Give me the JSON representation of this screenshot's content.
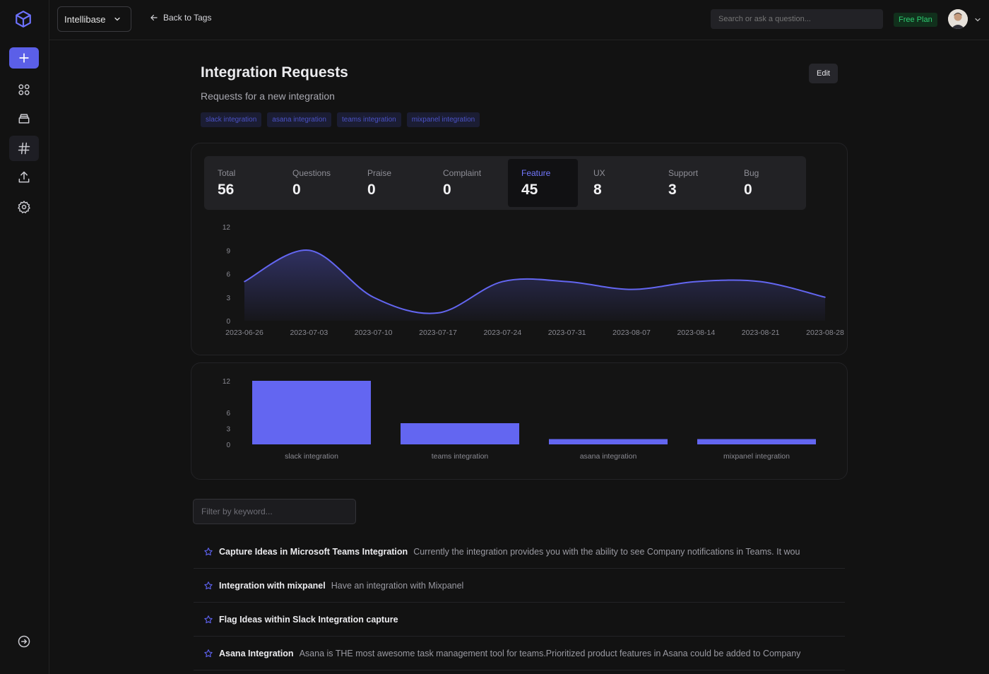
{
  "app": {
    "workspace": "Intellibase",
    "back_label": "Back to Tags",
    "search_placeholder": "Search or ask a question...",
    "plan_badge": "Free Plan"
  },
  "page": {
    "title": "Integration Requests",
    "subtitle": "Requests for a new integration",
    "edit_label": "Edit",
    "tags": [
      "slack integration",
      "asana integration",
      "teams integration",
      "mixpanel integration"
    ]
  },
  "stats": [
    {
      "label": "Total",
      "value": "56"
    },
    {
      "label": "Questions",
      "value": "0"
    },
    {
      "label": "Praise",
      "value": "0"
    },
    {
      "label": "Complaint",
      "value": "0"
    },
    {
      "label": "Feature",
      "value": "45"
    },
    {
      "label": "UX",
      "value": "8"
    },
    {
      "label": "Support",
      "value": "3"
    },
    {
      "label": "Bug",
      "value": "0"
    }
  ],
  "active_stat": "Feature",
  "chart_data": [
    {
      "type": "area",
      "x": [
        "2023-06-26",
        "2023-07-03",
        "2023-07-10",
        "2023-07-17",
        "2023-07-24",
        "2023-07-31",
        "2023-08-07",
        "2023-08-14",
        "2023-08-21",
        "2023-08-28"
      ],
      "values": [
        5,
        9,
        3,
        1,
        5,
        5,
        4,
        5,
        5,
        3
      ],
      "yticks": [
        0,
        3,
        6,
        9,
        12
      ],
      "ylim": [
        0,
        12
      ],
      "color": "#6366f1"
    },
    {
      "type": "bar",
      "categories": [
        "slack integration",
        "teams integration",
        "asana integration",
        "mixpanel integration"
      ],
      "values": [
        12,
        4,
        1,
        1
      ],
      "yticks": [
        0,
        3,
        6,
        12
      ],
      "ylim": [
        0,
        12
      ],
      "color": "#6366f1"
    }
  ],
  "filter_placeholder": "Filter by keyword...",
  "items": [
    {
      "title": "Capture Ideas in Microsoft Teams Integration",
      "desc": "Currently the integration provides you with the ability to see Company notifications in Teams. It wou"
    },
    {
      "title": "Integration with mixpanel",
      "desc": "Have an integration with Mixpanel"
    },
    {
      "title": "Flag Ideas within Slack Integration capture",
      "desc": ""
    },
    {
      "title": "Asana Integration",
      "desc": "Asana is THE most awesome task management tool for teams.Prioritized product features in Asana could be added to Company"
    }
  ],
  "colors": {
    "accent": "#5b5fe8",
    "background": "#121212",
    "plan_green": "#2ecc71"
  }
}
